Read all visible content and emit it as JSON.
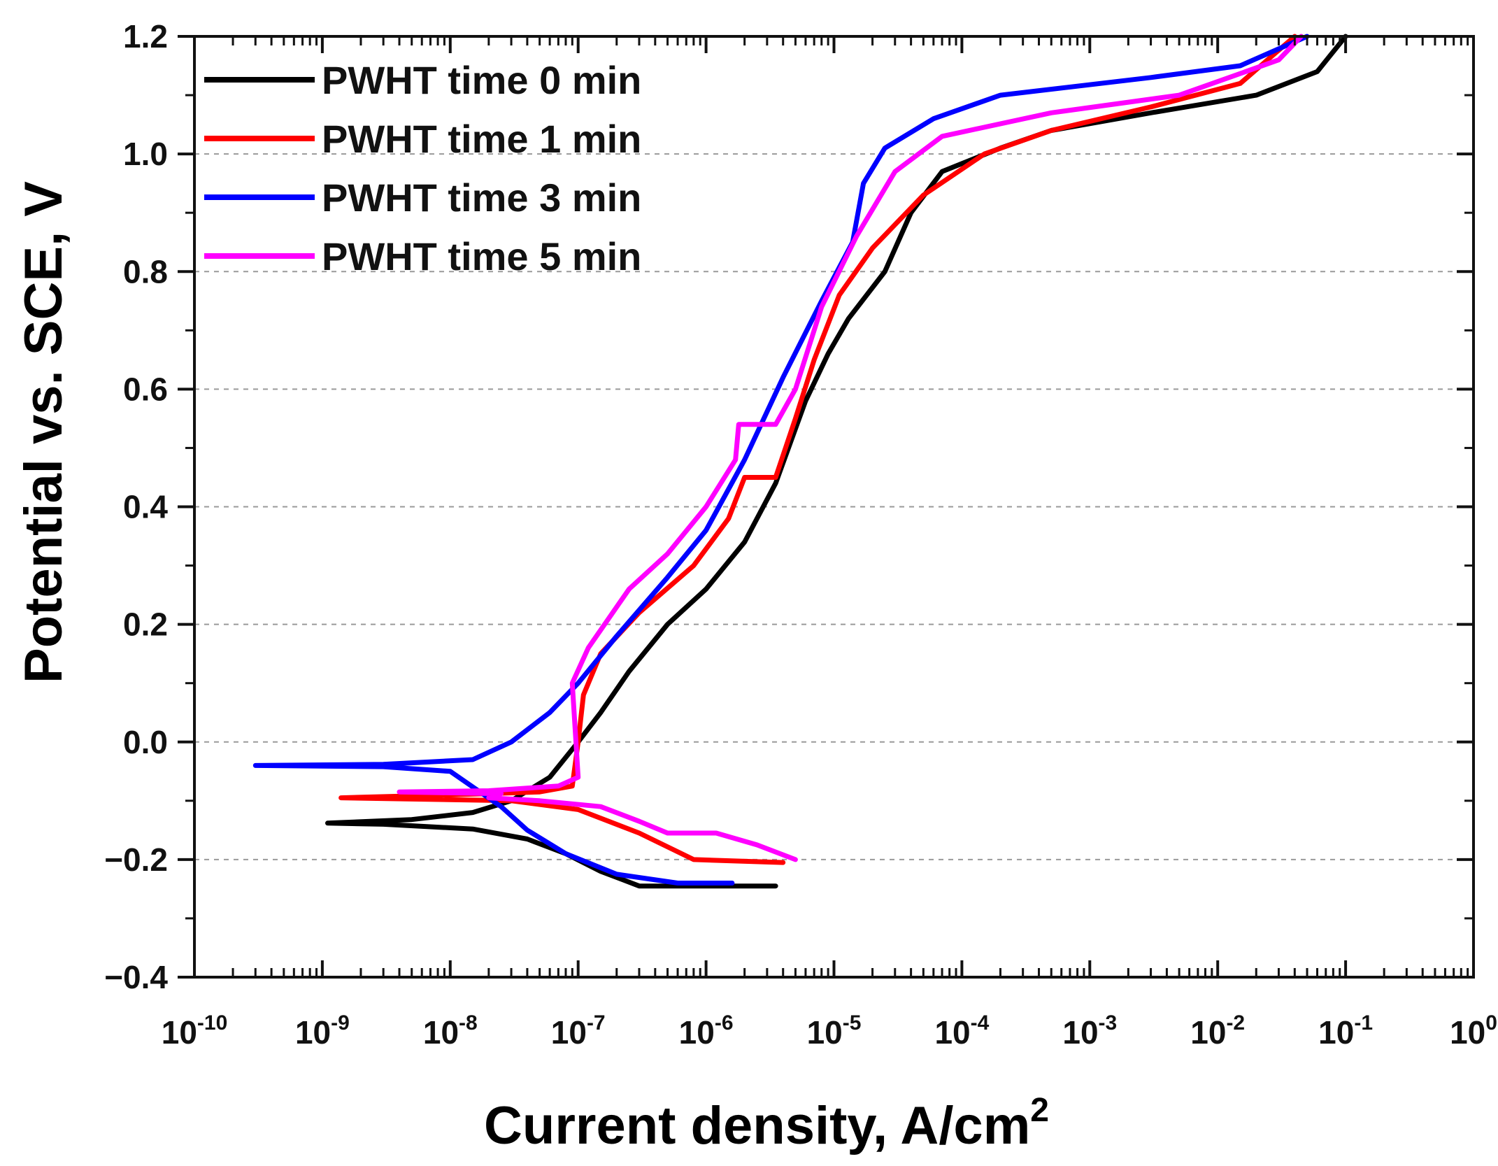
{
  "chart_data": {
    "type": "line",
    "title": "",
    "xlabel": "Current density, A/cm",
    "xlabel_sup": "2",
    "ylabel": "Potential vs. SCE, V",
    "x_scale": "log",
    "xlim_exp": [
      -10,
      0
    ],
    "ylim": [
      -0.4,
      1.2
    ],
    "x_ticks": [
      {
        "base": "10",
        "exp": "-10"
      },
      {
        "base": "10",
        "exp": "-9"
      },
      {
        "base": "10",
        "exp": "-8"
      },
      {
        "base": "10",
        "exp": "-7"
      },
      {
        "base": "10",
        "exp": "-6"
      },
      {
        "base": "10",
        "exp": "-5"
      },
      {
        "base": "10",
        "exp": "-4"
      },
      {
        "base": "10",
        "exp": "-3"
      },
      {
        "base": "10",
        "exp": "-2"
      },
      {
        "base": "10",
        "exp": "-1"
      },
      {
        "base": "10",
        "exp": "0"
      }
    ],
    "y_ticks": [
      "−0.4",
      "−0.2",
      "0.0",
      "0.2",
      "0.4",
      "0.6",
      "0.8",
      "1.0",
      "1.2"
    ],
    "y_tick_values": [
      -0.4,
      -0.2,
      0.0,
      0.2,
      0.4,
      0.6,
      0.8,
      1.0,
      1.2
    ],
    "gridlines_y": [
      -0.2,
      0.0,
      0.2,
      0.4,
      0.6,
      0.8,
      1.0
    ],
    "legend_position": "top-left",
    "series": [
      {
        "name": "PWHT time 0 min",
        "color": "#000000",
        "points": [
          [
            3.5e-06,
            -0.245
          ],
          [
            3e-07,
            -0.245
          ],
          [
            1.5e-07,
            -0.22
          ],
          [
            8e-08,
            -0.19
          ],
          [
            4e-08,
            -0.165
          ],
          [
            1.5e-08,
            -0.148
          ],
          [
            3e-09,
            -0.14
          ],
          [
            1.1e-09,
            -0.138
          ],
          [
            5e-09,
            -0.132
          ],
          [
            1.5e-08,
            -0.12
          ],
          [
            3e-08,
            -0.1
          ],
          [
            6e-08,
            -0.06
          ],
          [
            1e-07,
            0.0
          ],
          [
            1.5e-07,
            0.05
          ],
          [
            2.5e-07,
            0.12
          ],
          [
            5e-07,
            0.2
          ],
          [
            1e-06,
            0.26
          ],
          [
            2e-06,
            0.34
          ],
          [
            3.5e-06,
            0.44
          ],
          [
            6e-06,
            0.58
          ],
          [
            9e-06,
            0.66
          ],
          [
            1.3e-05,
            0.72
          ],
          [
            2.5e-05,
            0.8
          ],
          [
            4e-05,
            0.9
          ],
          [
            7e-05,
            0.97
          ],
          [
            0.0002,
            1.01
          ],
          [
            0.0005,
            1.04
          ],
          [
            0.003,
            1.07
          ],
          [
            0.02,
            1.1
          ],
          [
            0.06,
            1.14
          ],
          [
            0.1,
            1.2
          ]
        ]
      },
      {
        "name": "PWHT time 1 min",
        "color": "#ff0000",
        "points": [
          [
            4e-06,
            -0.205
          ],
          [
            8e-07,
            -0.2
          ],
          [
            3e-07,
            -0.155
          ],
          [
            1e-07,
            -0.115
          ],
          [
            3e-08,
            -0.1
          ],
          [
            1.4e-09,
            -0.095
          ],
          [
            1e-08,
            -0.09
          ],
          [
            5e-08,
            -0.085
          ],
          [
            9e-08,
            -0.075
          ],
          [
            1e-07,
            0.0
          ],
          [
            1.1e-07,
            0.08
          ],
          [
            1.5e-07,
            0.15
          ],
          [
            3e-07,
            0.22
          ],
          [
            8e-07,
            0.3
          ],
          [
            1.5e-06,
            0.38
          ],
          [
            2e-06,
            0.45
          ],
          [
            3.5e-06,
            0.45
          ],
          [
            5e-06,
            0.55
          ],
          [
            7e-06,
            0.65
          ],
          [
            1.1e-05,
            0.76
          ],
          [
            2e-05,
            0.84
          ],
          [
            5e-05,
            0.93
          ],
          [
            0.00015,
            1.0
          ],
          [
            0.0005,
            1.04
          ],
          [
            0.003,
            1.08
          ],
          [
            0.015,
            1.12
          ],
          [
            0.04,
            1.2
          ]
        ]
      },
      {
        "name": "PWHT time 3 min",
        "color": "#0000ff",
        "points": [
          [
            1.6e-06,
            -0.24
          ],
          [
            6e-07,
            -0.24
          ],
          [
            2e-07,
            -0.225
          ],
          [
            8e-08,
            -0.19
          ],
          [
            4e-08,
            -0.15
          ],
          [
            2.5e-08,
            -0.11
          ],
          [
            1e-08,
            -0.05
          ],
          [
            3e-09,
            -0.042
          ],
          [
            3e-10,
            -0.04
          ],
          [
            3e-09,
            -0.038
          ],
          [
            1.5e-08,
            -0.03
          ],
          [
            3e-08,
            0.0
          ],
          [
            6e-08,
            0.05
          ],
          [
            1e-07,
            0.1
          ],
          [
            2e-07,
            0.18
          ],
          [
            5e-07,
            0.28
          ],
          [
            1e-06,
            0.36
          ],
          [
            2e-06,
            0.48
          ],
          [
            4e-06,
            0.62
          ],
          [
            8e-06,
            0.75
          ],
          [
            1.4e-05,
            0.85
          ],
          [
            1.7e-05,
            0.95
          ],
          [
            2.5e-05,
            1.01
          ],
          [
            6e-05,
            1.06
          ],
          [
            0.0002,
            1.1
          ],
          [
            0.003,
            1.13
          ],
          [
            0.015,
            1.15
          ],
          [
            0.05,
            1.2
          ]
        ]
      },
      {
        "name": "PWHT time 5 min",
        "color": "#ff00ff",
        "points": [
          [
            5e-06,
            -0.2
          ],
          [
            2.5e-06,
            -0.175
          ],
          [
            1.2e-06,
            -0.155
          ],
          [
            5e-07,
            -0.155
          ],
          [
            3e-07,
            -0.135
          ],
          [
            1.5e-07,
            -0.11
          ],
          [
            5e-08,
            -0.1
          ],
          [
            2e-08,
            -0.095
          ],
          [
            2.5e-08,
            -0.088
          ],
          [
            4e-09,
            -0.085
          ],
          [
            2e-08,
            -0.083
          ],
          [
            7e-08,
            -0.075
          ],
          [
            1e-07,
            -0.06
          ],
          [
            9e-08,
            0.1
          ],
          [
            1.2e-07,
            0.16
          ],
          [
            2.5e-07,
            0.26
          ],
          [
            5e-07,
            0.32
          ],
          [
            1e-06,
            0.4
          ],
          [
            1.7e-06,
            0.48
          ],
          [
            1.8e-06,
            0.54
          ],
          [
            3.5e-06,
            0.54
          ],
          [
            5e-06,
            0.6
          ],
          [
            8e-06,
            0.74
          ],
          [
            1.5e-05,
            0.86
          ],
          [
            3e-05,
            0.97
          ],
          [
            7e-05,
            1.03
          ],
          [
            0.0005,
            1.07
          ],
          [
            0.005,
            1.1
          ],
          [
            0.03,
            1.16
          ],
          [
            0.045,
            1.2
          ]
        ]
      }
    ]
  }
}
